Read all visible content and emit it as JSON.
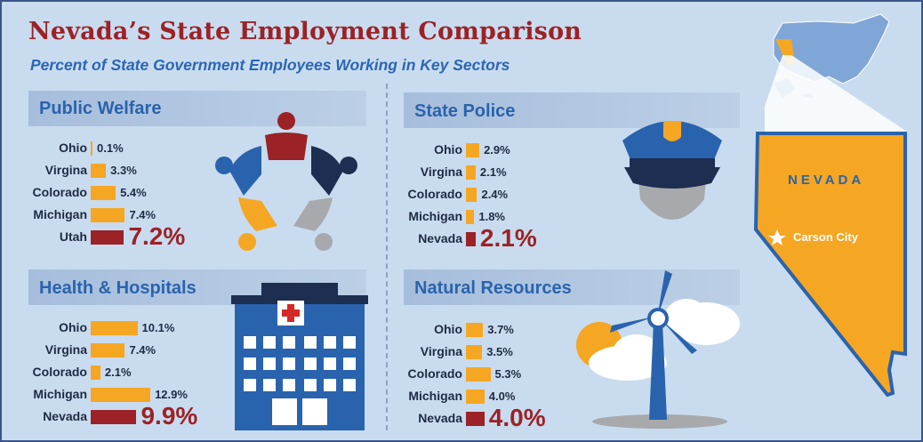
{
  "title": "Nevada’s State Employment Comparison",
  "subtitle": "Percent of State Government Employees Working in Key Sectors",
  "map": {
    "state_label": "NEVADA",
    "capital": "Carson City"
  },
  "colors": {
    "bar": "#f5a623",
    "highlight": "#9b2226",
    "heading": "#2a63ad",
    "title": "#9b2226",
    "state": "#f5a623"
  },
  "chart_data": [
    {
      "type": "bar",
      "orientation": "horizontal",
      "title": "Public Welfare",
      "categories": [
        "Ohio",
        "Virgina",
        "Colorado",
        "Michigan",
        "Utah"
      ],
      "values": [
        0.1,
        3.3,
        5.4,
        7.4,
        7.2
      ],
      "labels": [
        "0.1%",
        "3.3%",
        "5.4%",
        "7.4%",
        "7.2%"
      ],
      "highlight": "Utah",
      "icon": "people-circle-icon"
    },
    {
      "type": "bar",
      "orientation": "horizontal",
      "title": "State Police",
      "categories": [
        "Ohio",
        "Virgina",
        "Colorado",
        "Michigan",
        "Nevada"
      ],
      "values": [
        2.9,
        2.1,
        2.4,
        1.8,
        2.1
      ],
      "labels": [
        "2.9%",
        "2.1%",
        "2.4%",
        "1.8%",
        "2.1%"
      ],
      "highlight": "Nevada",
      "icon": "police-cap-icon"
    },
    {
      "type": "bar",
      "orientation": "horizontal",
      "title": "Health & Hospitals",
      "categories": [
        "Ohio",
        "Virgina",
        "Colorado",
        "Michigan",
        "Nevada"
      ],
      "values": [
        10.1,
        7.4,
        2.1,
        12.9,
        9.9
      ],
      "labels": [
        "10.1%",
        "7.4%",
        "2.1%",
        "12.9%",
        "9.9%"
      ],
      "highlight": "Nevada",
      "icon": "hospital-icon"
    },
    {
      "type": "bar",
      "orientation": "horizontal",
      "title": "Natural Resources",
      "categories": [
        "Ohio",
        "Virgina",
        "Colorado",
        "Michigan",
        "Nevada"
      ],
      "values": [
        3.7,
        3.5,
        5.3,
        4.0,
        4.0
      ],
      "labels": [
        "3.7%",
        "3.5%",
        "5.3%",
        "4.0%",
        "4.0%"
      ],
      "highlight": "Nevada",
      "icon": "wind-turbine-icon"
    }
  ]
}
